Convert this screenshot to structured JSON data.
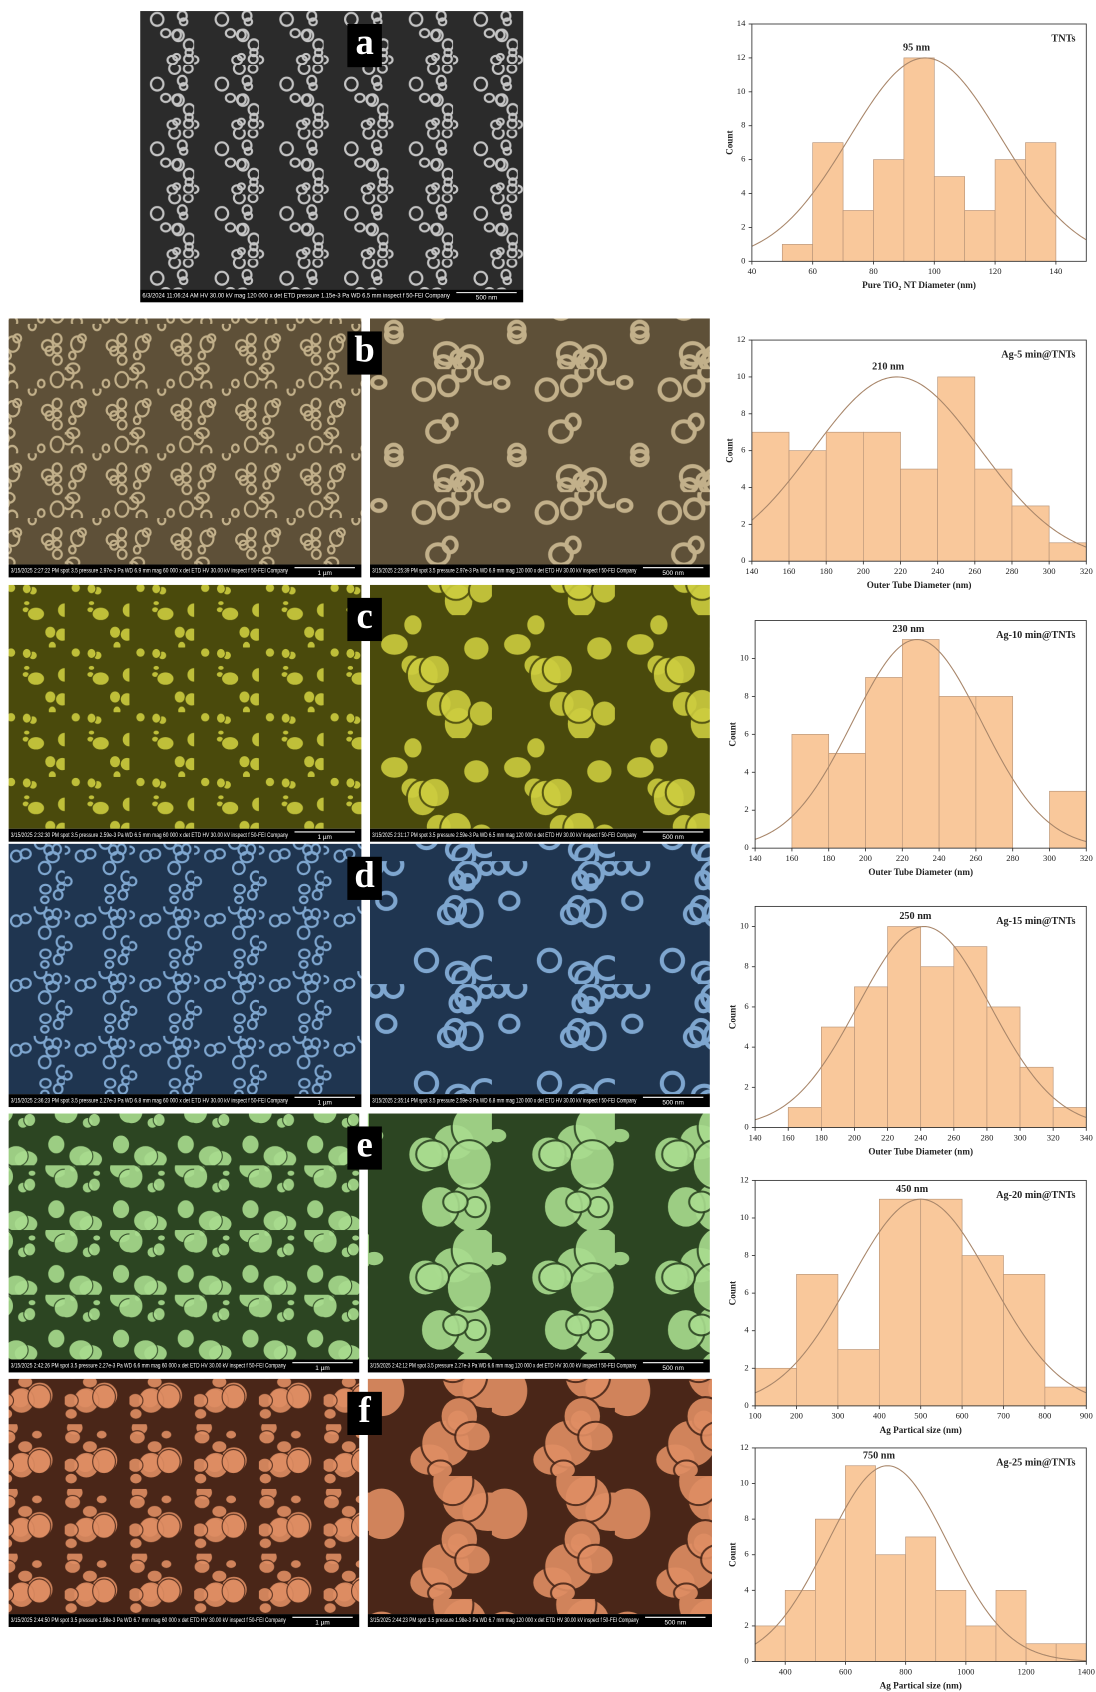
{
  "panels": [
    {
      "letter": "a",
      "images": [
        {
          "info": "6/3/2024  11:06:24 AM  HV 30.00 kV  mag 120 000 x  det ETD  pressure 1.15e-3 Pa  WD 6.5 mm  inspect f 50-FEI Company",
          "scale": "500 nm"
        }
      ]
    },
    {
      "letter": "b",
      "images": [
        {
          "info": "3/15/2025  2:27:22 PM  spot 3.5  pressure 2.97e-3 Pa  WD 6.9 mm  mag 60 000 x  det ETD  HV 30.00 kV  inspect f 50-FEI Company",
          "scale": "1 µm"
        },
        {
          "info": "3/15/2025  2:25:39 PM  spot 3.5  pressure 2.97e-3 Pa  WD 6.9 mm  mag 120 000 x  det ETD  HV 30.00 kV  inspect f 50-FEI Company",
          "scale": "500 nm"
        }
      ]
    },
    {
      "letter": "c",
      "images": [
        {
          "info": "3/15/2025  2:32:30 PM  spot 3.5  pressure 2.59e-3 Pa  WD 6.5 mm  mag 60 000 x  det ETD  HV 30.00 kV  inspect f 50-FEI Company",
          "scale": "1 µm"
        },
        {
          "info": "3/15/2025  2:31:17 PM  spot 3.5  pressure 2.59e-3 Pa  WD 6.5 mm  mag 120 000 x  det ETD  HV 30.00 kV  inspect f 50-FEI Company",
          "scale": "500 nm"
        }
      ]
    },
    {
      "letter": "d",
      "images": [
        {
          "info": "3/15/2025  2:36:23 PM  spot 3.5  pressure 2.27e-3 Pa  WD 6.8 mm  mag 60 000 x  det ETD  HV 30.00 kV  inspect f 50-FEI Company",
          "scale": "1 µm"
        },
        {
          "info": "3/15/2025  2:35:14 PM  spot 3.5  pressure 2.59e-3 Pa  WD 6.8 mm  mag 120 000 x  det ETD  HV 30.00 kV  inspect f 50-FEI Company",
          "scale": "500 nm"
        }
      ]
    },
    {
      "letter": "e",
      "images": [
        {
          "info": "3/15/2025  2:42:26 PM  spot 3.5  pressure 2.27e-3 Pa  WD 6.6 mm  mag 60 000 x  det ETD  HV 30.00 kV  inspect f 50-FEI Company",
          "scale": "1 µm"
        },
        {
          "info": "3/15/2025  2:42:12 PM  spot 3.5  pressure 2.27e-3 Pa  WD 6.6 mm  mag 120 000 x  det ETD  HV 30.00 kV  inspect f 50-FEI Company",
          "scale": "500 nm"
        }
      ]
    },
    {
      "letter": "f",
      "images": [
        {
          "info": "3/15/2025  2:44:50 PM  spot 3.5  pressure 1.98e-3 Pa  WD 6.7 mm  mag 60 000 x  det ETD  HV 30.00 kV  inspect f 50-FEI Company",
          "scale": "1 µm"
        },
        {
          "info": "3/15/2025  2:44:23 PM  spot 3.5  pressure 1.98e-3 Pa  WD 6.7 mm  mag 120 000 x  det ETD  HV 30.00 kV  inspect f 50-FEI Company",
          "scale": "500 nm"
        }
      ]
    }
  ],
  "chart_data": [
    {
      "type": "histogram",
      "label": "TNTs",
      "annotation": "95 nm",
      "xlabel": "Pure TiO₂ NT Diameter (nm)",
      "ylabel": "Count",
      "color": "#f9c89b",
      "bins": [
        50,
        60,
        70,
        80,
        90,
        100,
        110,
        120,
        130,
        140
      ],
      "values": [
        1,
        7,
        3,
        6,
        12,
        5,
        3,
        6,
        7
      ],
      "fit": {
        "mean": 97,
        "sd": 25,
        "peak": 12
      },
      "xlim": [
        40,
        150
      ],
      "xticks": [
        40,
        60,
        80,
        100,
        120,
        140
      ],
      "ylim": [
        0,
        14
      ],
      "yticks": [
        0,
        2,
        4,
        6,
        8,
        10,
        12,
        14
      ]
    },
    {
      "type": "histogram",
      "label": "Ag-5 min@TNTs",
      "annotation": "210 nm",
      "xlabel": "Outer Tube Diameter (nm)",
      "ylabel": "Count",
      "color": "#f9c89b",
      "bins": [
        140,
        160,
        180,
        200,
        220,
        240,
        260,
        280,
        300,
        320
      ],
      "values": [
        7,
        6,
        7,
        7,
        5,
        10,
        5,
        3,
        1
      ],
      "fit": {
        "mean": 218,
        "sd": 45,
        "peak": 10
      },
      "xlim": [
        140,
        320
      ],
      "xticks": [
        140,
        160,
        180,
        200,
        220,
        240,
        260,
        280,
        300,
        320
      ],
      "ylim": [
        0,
        12
      ],
      "yticks": [
        0,
        2,
        4,
        6,
        8,
        10,
        12
      ]
    },
    {
      "type": "histogram",
      "label": "Ag-10 min@TNTs",
      "annotation": "230 nm",
      "xlabel": "Outer Tube Diameter (nm)",
      "ylabel": "Count",
      "color": "#f9c89b",
      "bins": [
        160,
        180,
        200,
        220,
        240,
        260,
        280,
        300,
        320
      ],
      "values": [
        6,
        5,
        9,
        11,
        8,
        8,
        0,
        3
      ],
      "fit": {
        "mean": 228,
        "sd": 35,
        "peak": 11
      },
      "xlim": [
        140,
        320
      ],
      "xticks": [
        140,
        160,
        180,
        200,
        220,
        240,
        260,
        280,
        300,
        320
      ],
      "ylim": [
        0,
        12
      ],
      "yticks": [
        0,
        2,
        4,
        6,
        8,
        10
      ]
    },
    {
      "type": "histogram",
      "label": "Ag-15 min@TNTs",
      "annotation": "250 nm",
      "xlabel": "Outer Tube Diameter (nm)",
      "ylabel": "Count",
      "color": "#f9c89b",
      "bins": [
        160,
        180,
        200,
        220,
        240,
        260,
        280,
        300,
        320,
        340
      ],
      "values": [
        1,
        5,
        7,
        10,
        8,
        9,
        6,
        3,
        1
      ],
      "fit": {
        "mean": 242,
        "sd": 40,
        "peak": 10
      },
      "xlim": [
        140,
        340
      ],
      "xticks": [
        140,
        160,
        180,
        200,
        220,
        240,
        260,
        280,
        300,
        320,
        340
      ],
      "ylim": [
        0,
        11
      ],
      "yticks": [
        0,
        2,
        4,
        6,
        8,
        10
      ]
    },
    {
      "type": "histogram",
      "label": "Ag-20 min@TNTs",
      "annotation": "450 nm",
      "xlabel": "Ag Partical size (nm)",
      "ylabel": "Count",
      "color": "#f9c89b",
      "bins": [
        100,
        200,
        300,
        400,
        500,
        600,
        700,
        800,
        900
      ],
      "values": [
        2,
        7,
        3,
        11,
        11,
        8,
        7,
        1
      ],
      "fit": {
        "mean": 500,
        "sd": 170,
        "peak": 11
      },
      "xlim": [
        100,
        900
      ],
      "xticks": [
        100,
        200,
        300,
        400,
        500,
        600,
        700,
        800,
        900
      ],
      "ylim": [
        0,
        12
      ],
      "yticks": [
        0,
        2,
        4,
        6,
        8,
        10,
        12
      ]
    },
    {
      "type": "histogram",
      "label": "Ag-25 min@TNTs",
      "annotation": "750 nm",
      "xlabel": "Ag Partical size (nm)",
      "ylabel": "Count",
      "color": "#f9c89b",
      "bins": [
        300,
        400,
        500,
        600,
        700,
        800,
        900,
        1000,
        1100,
        1200,
        1300,
        1400
      ],
      "values": [
        2,
        4,
        8,
        11,
        6,
        7,
        4,
        2,
        4,
        1,
        1
      ],
      "fit": {
        "mean": 740,
        "sd": 200,
        "peak": 11
      },
      "xlim": [
        300,
        1400
      ],
      "xticks": [
        400,
        600,
        800,
        1000,
        1200,
        1400
      ],
      "ylim": [
        0,
        12
      ],
      "yticks": [
        0,
        2,
        4,
        6,
        8,
        10,
        12
      ]
    }
  ]
}
